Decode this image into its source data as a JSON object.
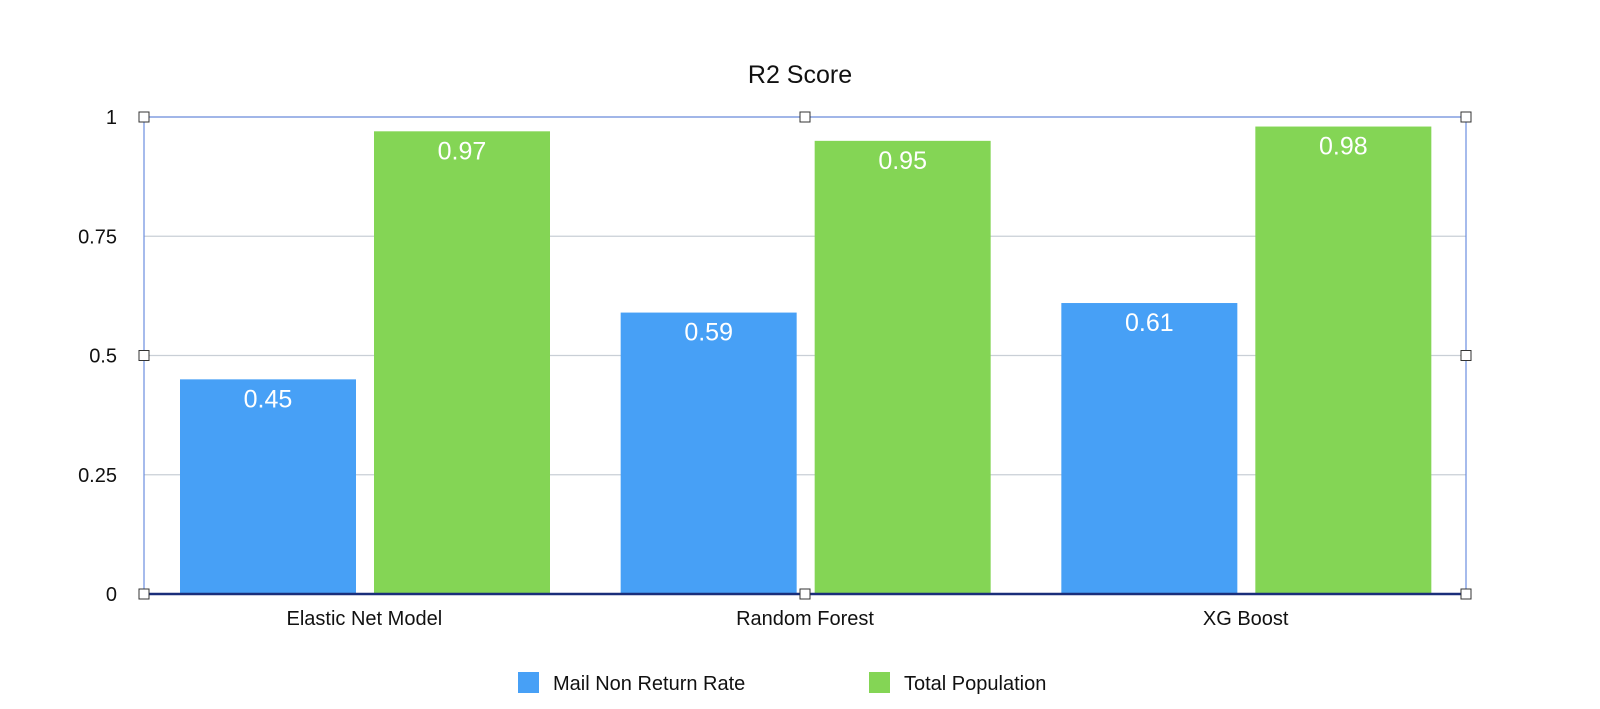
{
  "chart_data": {
    "type": "bar",
    "title": "R2 Score",
    "categories": [
      "Elastic Net Model",
      "Random Forest",
      "XG Boost"
    ],
    "series": [
      {
        "name": "Mail Non Return Rate",
        "values": [
          0.45,
          0.59,
          0.61
        ],
        "labels": [
          "0.45",
          "0.59",
          "0.61"
        ],
        "color": "#47a0f6"
      },
      {
        "name": "Total Population",
        "values": [
          0.97,
          0.95,
          0.98
        ],
        "labels": [
          "0.97",
          "0.95",
          "0.98"
        ],
        "color": "#84d555"
      }
    ],
    "ylim": [
      0,
      1
    ],
    "yticks": [
      0,
      0.25,
      0.5,
      0.75,
      1
    ],
    "ytick_labels": [
      "0",
      "0.25",
      "0.5",
      "0.75",
      "1"
    ],
    "grid": true,
    "legend_position": "bottom-center",
    "xlabel": "",
    "ylabel": ""
  },
  "colors": {
    "gridline": "#c9cfd6",
    "selection_frame": "#6c8ee0",
    "baseline": "#1a2e7a"
  }
}
